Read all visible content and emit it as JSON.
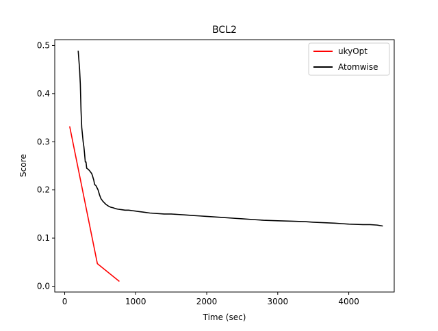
{
  "chart_data": {
    "type": "line",
    "title": "BCL2",
    "xlabel": "Time (sec)",
    "ylabel": "Score",
    "xlim": [
      -140,
      4640
    ],
    "ylim": [
      -0.012,
      0.512
    ],
    "xticks": [
      0,
      1000,
      2000,
      3000,
      4000
    ],
    "yticks": [
      0.0,
      0.1,
      0.2,
      0.3,
      0.4,
      0.5
    ],
    "xtick_labels": [
      "0",
      "1000",
      "2000",
      "3000",
      "4000"
    ],
    "ytick_labels": [
      "0.0",
      "0.1",
      "0.2",
      "0.3",
      "0.4",
      "0.5"
    ],
    "grid": false,
    "legend_position": "top-right",
    "series": [
      {
        "name": "ukyOpt",
        "color": "#ff0000",
        "x": [
          70,
          460,
          770
        ],
        "y": [
          0.332,
          0.047,
          0.01
        ]
      },
      {
        "name": "Atomwise",
        "color": "#000000",
        "x": [
          190,
          210,
          220,
          230,
          240,
          250,
          260,
          270,
          280,
          290,
          300,
          310,
          320,
          330,
          350,
          370,
          380,
          390,
          400,
          410,
          420,
          430,
          440,
          450,
          470,
          480,
          490,
          500,
          510,
          520,
          530,
          540,
          560,
          580,
          600,
          620,
          650,
          680,
          700,
          720,
          750,
          800,
          850,
          900,
          950,
          1000,
          1050,
          1100,
          1200,
          1300,
          1400,
          1500,
          1600,
          1700,
          1800,
          1900,
          2000,
          2200,
          2400,
          2500,
          2700,
          2800,
          3000,
          3200,
          3400,
          3500,
          3800,
          3900,
          4000,
          4200,
          4300,
          4400,
          4480
        ],
        "y": [
          0.489,
          0.45,
          0.42,
          0.365,
          0.33,
          0.315,
          0.3,
          0.29,
          0.275,
          0.258,
          0.258,
          0.245,
          0.244,
          0.243,
          0.24,
          0.236,
          0.234,
          0.23,
          0.225,
          0.22,
          0.212,
          0.21,
          0.209,
          0.206,
          0.2,
          0.195,
          0.19,
          0.186,
          0.182,
          0.18,
          0.178,
          0.176,
          0.173,
          0.17,
          0.168,
          0.166,
          0.164,
          0.163,
          0.162,
          0.161,
          0.16,
          0.159,
          0.158,
          0.158,
          0.157,
          0.156,
          0.155,
          0.154,
          0.152,
          0.151,
          0.15,
          0.15,
          0.149,
          0.148,
          0.147,
          0.146,
          0.145,
          0.143,
          0.141,
          0.14,
          0.138,
          0.137,
          0.136,
          0.135,
          0.134,
          0.133,
          0.131,
          0.13,
          0.129,
          0.128,
          0.128,
          0.127,
          0.125
        ]
      }
    ]
  }
}
